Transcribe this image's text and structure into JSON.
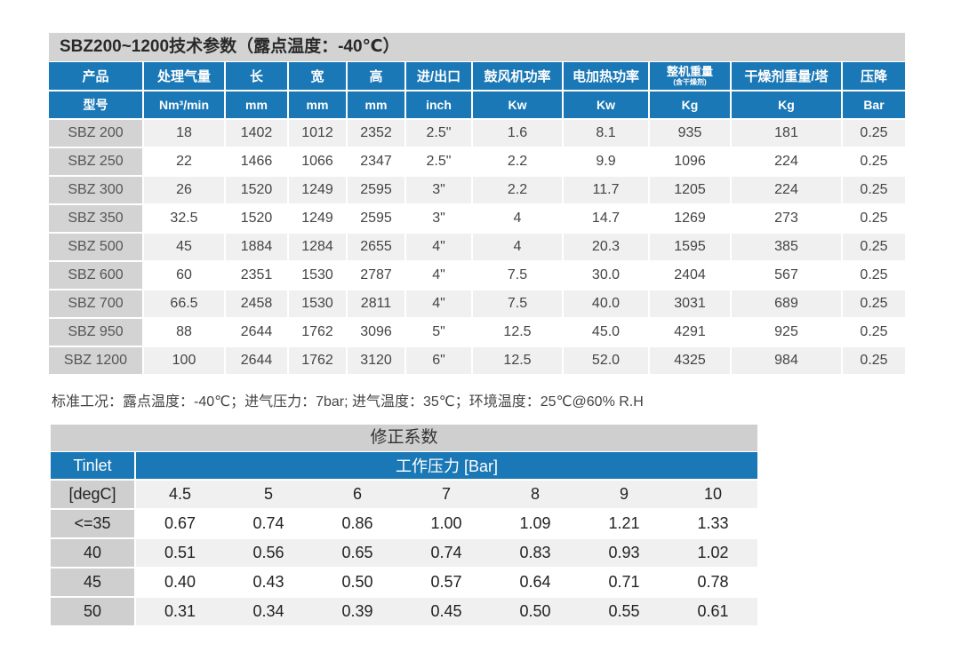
{
  "spec": {
    "title": "SBZ200~1200技术参数（露点温度：-40℃）",
    "headers": [
      "产品",
      "处理气量",
      "长",
      "宽",
      "高",
      "进/出口",
      "鼓风机功率",
      "电加热功率",
      "整机重量",
      "干燥剂重量/塔",
      "压降"
    ],
    "header_sub_note": "(含干燥剂)",
    "units": [
      "型号",
      "Nm³/min",
      "mm",
      "mm",
      "mm",
      "inch",
      "Kw",
      "Kw",
      "Kg",
      "Kg",
      "Bar"
    ],
    "rows": [
      [
        "SBZ 200",
        "18",
        "1402",
        "1012",
        "2352",
        "2.5\"",
        "1.6",
        "8.1",
        "935",
        "181",
        "0.25"
      ],
      [
        "SBZ 250",
        "22",
        "1466",
        "1066",
        "2347",
        "2.5\"",
        "2.2",
        "9.9",
        "1096",
        "224",
        "0.25"
      ],
      [
        "SBZ 300",
        "26",
        "1520",
        "1249",
        "2595",
        "3\"",
        "2.2",
        "11.7",
        "1205",
        "224",
        "0.25"
      ],
      [
        "SBZ 350",
        "32.5",
        "1520",
        "1249",
        "2595",
        "3\"",
        "4",
        "14.7",
        "1269",
        "273",
        "0.25"
      ],
      [
        "SBZ 500",
        "45",
        "1884",
        "1284",
        "2655",
        "4\"",
        "4",
        "20.3",
        "1595",
        "385",
        "0.25"
      ],
      [
        "SBZ 600",
        "60",
        "2351",
        "1530",
        "2787",
        "4\"",
        "7.5",
        "30.0",
        "2404",
        "567",
        "0.25"
      ],
      [
        "SBZ 700",
        "66.5",
        "2458",
        "1530",
        "2811",
        "4\"",
        "7.5",
        "40.0",
        "3031",
        "689",
        "0.25"
      ],
      [
        "SBZ 950",
        "88",
        "2644",
        "1762",
        "3096",
        "5\"",
        "12.5",
        "45.0",
        "4291",
        "925",
        "0.25"
      ],
      [
        "SBZ 1200",
        "100",
        "2644",
        "1762",
        "3120",
        "6\"",
        "12.5",
        "52.0",
        "4325",
        "984",
        "0.25"
      ]
    ]
  },
  "conditions": "标准工况：露点温度：-40℃；进气压力：7bar; 进气温度：35℃；环境温度：25℃@60% R.H",
  "correction": {
    "title": "修正系数",
    "row_header": "Tinlet",
    "col_header": "工作压力  [Bar]",
    "unit_label": "[degC]",
    "pressures": [
      "4.5",
      "5",
      "6",
      "7",
      "8",
      "9",
      "10"
    ],
    "rows": [
      {
        "temp": "<=35",
        "values": [
          "0.67",
          "0.74",
          "0.86",
          "1.00",
          "1.09",
          "1.21",
          "1.33"
        ]
      },
      {
        "temp": "40",
        "values": [
          "0.51",
          "0.56",
          "0.65",
          "0.74",
          "0.83",
          "0.93",
          "1.02"
        ]
      },
      {
        "temp": "45",
        "values": [
          "0.40",
          "0.43",
          "0.50",
          "0.57",
          "0.64",
          "0.71",
          "0.78"
        ]
      },
      {
        "temp": "50",
        "values": [
          "0.31",
          "0.34",
          "0.39",
          "0.45",
          "0.50",
          "0.55",
          "0.61"
        ]
      }
    ]
  }
}
